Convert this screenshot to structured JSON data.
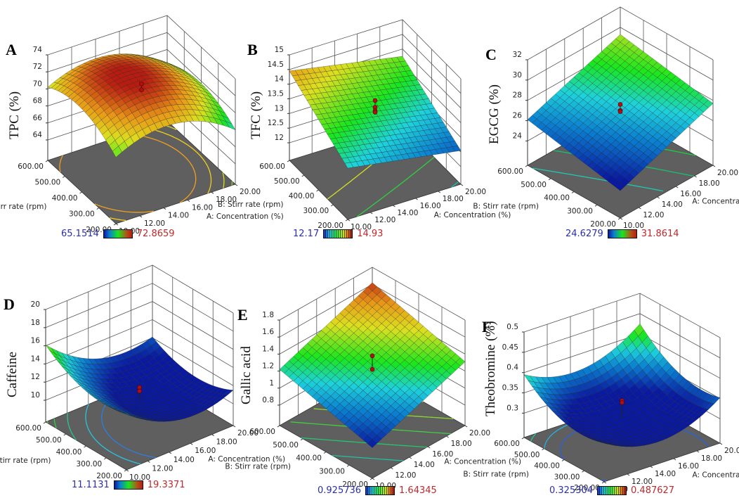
{
  "figure": {
    "description": "Six 3D response surface plots with contour projections",
    "common_axes": {
      "a_label": "A: Concentration (%)",
      "b_label": "B: Stirr rate (rpm)",
      "a_ticks": [
        "10.00",
        "12.00",
        "14.00",
        "16.00",
        "18.00",
        "20.00"
      ],
      "b_ticks": [
        "200.00",
        "300.00",
        "400.00",
        "500.00",
        "600.00"
      ]
    }
  },
  "chart_data": [
    {
      "id": "A",
      "type": "surface3d",
      "letter": "A",
      "zlabel": "TPC (%)",
      "xlabel": "A: Concentration (%)",
      "ylabel": "B: Stirr rate (rpm)",
      "xlim": [
        10,
        20
      ],
      "ylim": [
        200,
        600
      ],
      "zlim": [
        64,
        74
      ],
      "z_ticks": [
        "64",
        "66",
        "68",
        "70",
        "72",
        "74"
      ],
      "b_ticks": [
        "200.00",
        "300.00",
        "400.00",
        "500.00",
        "600.00"
      ],
      "b_ticks_first_top_label": "600.00",
      "legend": {
        "min": "65.1514",
        "max": "72.8659",
        "style": "smooth"
      },
      "surface": {
        "model": "quadratic",
        "center": [
          71.6,
          71.6
        ],
        "corners": {
          "x10y200": 69.4,
          "x20y200": 68.0,
          "x10y600": 70.2,
          "x20y600": 68.3
        }
      },
      "design_points_z": [
        72.0,
        71.3
      ],
      "contours": [
        {
          "level": 71.0,
          "color": "#f0a020"
        },
        {
          "level": 70.0,
          "color": "#f2d018"
        },
        {
          "level": 69.0,
          "color": "#d8e020"
        },
        {
          "level": 68.3,
          "color": "#8cd42a"
        }
      ]
    },
    {
      "id": "B",
      "type": "surface3d",
      "letter": "B",
      "zlabel": "TFC (%)",
      "xlabel": "A: Concentration (%)",
      "ylabel": "B: Stirr rate (rpm)",
      "xlim": [
        10,
        20
      ],
      "ylim": [
        200,
        600
      ],
      "zlim": [
        12,
        15
      ],
      "z_ticks": [
        "12",
        "12.5",
        "13",
        "13.5",
        "14",
        "14.5",
        "15"
      ],
      "legend": {
        "min": "12.17",
        "max": "14.93",
        "style": "striped"
      },
      "surface": {
        "model": "linear",
        "corners": {
          "x10y200": 13.15,
          "x20y200": 12.55,
          "x10y600": 14.45,
          "x20y600": 13.75
        }
      },
      "design_points_z": [
        13.85,
        13.62,
        13.5,
        13.45
      ],
      "contours": [
        {
          "level": 13.6,
          "color": "#d4e020"
        },
        {
          "level": 13.1,
          "color": "#30d040"
        },
        {
          "level": 12.6,
          "color": "#20c0b0"
        }
      ]
    },
    {
      "id": "C",
      "type": "surface3d",
      "letter": "C",
      "zlabel": "EGCG (%)",
      "xlabel": "A: Concentration (%)",
      "ylabel": "B: Stirr rate (rpm)",
      "xlim": [
        10,
        20
      ],
      "ylim": [
        200,
        600
      ],
      "zlim": [
        24,
        32
      ],
      "z_ticks": [
        "24",
        "26",
        "28",
        "30",
        "32"
      ],
      "legend": {
        "min": "24.6279",
        "max": "31.8614",
        "style": "smooth"
      },
      "surface": {
        "model": "linear",
        "corners": {
          "x10y200": 24.3,
          "x20y200": 27.7,
          "x10y600": 26.1,
          "x20y600": 29.3
        }
      },
      "design_points_z": [
        27.6,
        27.0,
        26.9
      ],
      "contours": [
        {
          "level": 26.0,
          "color": "#20c8b0"
        },
        {
          "level": 27.0,
          "color": "#18c070"
        },
        {
          "level": 28.0,
          "color": "#18d040"
        }
      ]
    },
    {
      "id": "D",
      "type": "surface3d",
      "letter": "D",
      "zlabel": "Caffeine",
      "xlabel": "A: Concentration (%)",
      "ylabel": "B: Stirr rate (rpm)",
      "xlim": [
        10,
        20
      ],
      "ylim": [
        200,
        600
      ],
      "zlim": [
        10,
        20
      ],
      "z_ticks": [
        "10",
        "12",
        "14",
        "16",
        "18",
        "20"
      ],
      "legend": {
        "min": "11.1131",
        "max": "19.3371",
        "style": "smooth"
      },
      "surface": {
        "model": "quadratic",
        "center": [
          16.0,
          11.2
        ],
        "corners": {
          "x10y200": 13.8,
          "x20y200": 11.5,
          "x10y600": 16.1,
          "x20y600": 12.1
        }
      },
      "design_points_z": [
        11.6,
        11.2
      ],
      "contours": [
        {
          "level": 11.6,
          "color": "#2d7de0"
        },
        {
          "level": 12.6,
          "color": "#28c4e0"
        },
        {
          "level": 14.0,
          "color": "#22c890"
        },
        {
          "level": 15.2,
          "color": "#30d040"
        },
        {
          "level": 15.9,
          "color": "#60d028"
        }
      ]
    },
    {
      "id": "E",
      "type": "surface3d",
      "letter": "E",
      "zlabel": "Gallic acid",
      "xlabel": "A: Concentration (%)",
      "ylabel": "B: Stirr rate (rpm)",
      "xlim": [
        10,
        20
      ],
      "ylim": [
        200,
        600
      ],
      "zlim": [
        0.8,
        1.8
      ],
      "z_ticks": [
        "0.8",
        "1",
        "1.2",
        "1.4",
        "1.6",
        "1.8"
      ],
      "legend": {
        "min": "0.925736",
        "max": "1.64345",
        "style": "striped"
      },
      "surface": {
        "model": "linear",
        "corners": {
          "x10y200": 0.92,
          "x20y200": 1.31,
          "x10y600": 1.22,
          "x20y600": 1.62
        }
      },
      "design_points_z": [
        1.38,
        1.22
      ],
      "contours": [
        {
          "level": 1.05,
          "color": "#20c0a0"
        },
        {
          "level": 1.15,
          "color": "#22c870"
        },
        {
          "level": 1.25,
          "color": "#40d040"
        },
        {
          "level": 1.35,
          "color": "#88d830"
        },
        {
          "level": 1.45,
          "color": "#c0dc28"
        },
        {
          "level": 1.55,
          "color": "#e0e020"
        }
      ]
    },
    {
      "id": "F",
      "type": "surface3d",
      "letter": "F",
      "zlabel": "Theobromine (%)",
      "xlabel": "A: Concentration (%)",
      "ylabel": "B: Stirr rate (rpm)",
      "xlim": [
        10,
        20
      ],
      "ylim": [
        200,
        600
      ],
      "zlim": [
        0.3,
        0.5
      ],
      "z_ticks": [
        "0.3",
        "0.35",
        "0.4",
        "0.45",
        "0.5"
      ],
      "legend": {
        "min": "0.325304",
        "max": "0.487627",
        "style": "striped"
      },
      "surface": {
        "model": "quadratic",
        "center": [
          15.0,
          0.322
        ],
        "corners": {
          "x10y200": 0.336,
          "x20y200": 0.352,
          "x10y600": 0.395,
          "x20y600": 0.425
        }
      },
      "design_points_z": [
        0.338,
        0.333
      ],
      "contours": [
        {
          "level": 0.333,
          "color": "#2860e0"
        },
        {
          "level": 0.355,
          "color": "#28b0e0"
        },
        {
          "level": 0.38,
          "color": "#22c8a0"
        },
        {
          "level": 0.4,
          "color": "#30d040"
        }
      ]
    }
  ]
}
